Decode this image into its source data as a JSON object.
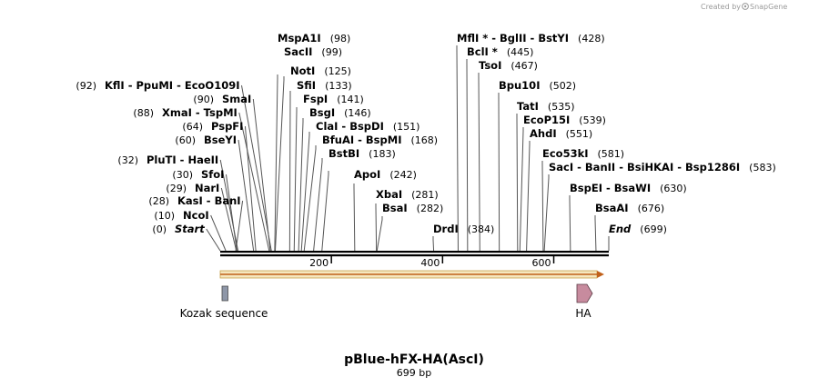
{
  "credit": {
    "created_by": "Created by",
    "brand": "SnapGene"
  },
  "map": {
    "title": "pBlue-hFX-HA(AscI)",
    "length_label": "699 bp",
    "length": 699
  },
  "ticks": [
    {
      "value": 200,
      "label": "200"
    },
    {
      "value": 400,
      "label": "400"
    },
    {
      "value": 600,
      "label": "600"
    }
  ],
  "features": [
    {
      "name": "Kozak sequence",
      "shape": "box",
      "color": "#8e97a8"
    },
    {
      "name": "HA",
      "shape": "arrow",
      "color": "#c78b9e"
    }
  ],
  "sites": [
    {
      "text": "MspA1I",
      "pos": "(98)",
      "site": 98,
      "side": "right"
    },
    {
      "text": "SacII",
      "pos": "(99)",
      "site": 99,
      "side": "right"
    },
    {
      "text": "KflI - PpuMI - EcoO109I",
      "pos": "(92)",
      "site": 92,
      "side": "left"
    },
    {
      "text": "NotI",
      "pos": "(125)",
      "site": 125,
      "side": "right"
    },
    {
      "text": "SmaI",
      "pos": "(90)",
      "site": 90,
      "side": "left"
    },
    {
      "text": "SfiI",
      "pos": "(133)",
      "site": 133,
      "side": "right"
    },
    {
      "text": "XmaI - TspMI",
      "pos": "(88)",
      "site": 88,
      "side": "left"
    },
    {
      "text": "FspI",
      "pos": "(141)",
      "site": 141,
      "side": "right"
    },
    {
      "text": "PspFI",
      "pos": "(64)",
      "site": 64,
      "side": "left"
    },
    {
      "text": "BsgI",
      "pos": "(146)",
      "site": 146,
      "side": "right"
    },
    {
      "text": "BseYI",
      "pos": "(60)",
      "site": 60,
      "side": "left"
    },
    {
      "text": "ClaI - BspDI",
      "pos": "(151)",
      "site": 151,
      "side": "right"
    },
    {
      "text": "BfuAI - BspMI",
      "pos": "(168)",
      "site": 168,
      "side": "right"
    },
    {
      "text": "BstBI",
      "pos": "(183)",
      "site": 183,
      "side": "right"
    },
    {
      "text": "PluTI - HaeII",
      "pos": "(32)",
      "site": 32,
      "side": "left"
    },
    {
      "text": "SfoI",
      "pos": "(30)",
      "site": 30,
      "side": "left"
    },
    {
      "text": "NarI",
      "pos": "(29)",
      "site": 29,
      "side": "left"
    },
    {
      "text": "KasI - BanI",
      "pos": "(28)",
      "site": 28,
      "side": "left"
    },
    {
      "text": "NcoI",
      "pos": "(10)",
      "site": 10,
      "side": "left"
    },
    {
      "text": "Start",
      "pos": "(0)",
      "site": 0,
      "side": "left",
      "italic": true
    },
    {
      "text": "ApoI",
      "pos": "(242)",
      "site": 242,
      "side": "right"
    },
    {
      "text": "XbaI",
      "pos": "(281)",
      "site": 281,
      "side": "right"
    },
    {
      "text": "BsaI",
      "pos": "(282)",
      "site": 282,
      "side": "right"
    },
    {
      "text": "DrdI",
      "pos": "(384)",
      "site": 384,
      "side": "right"
    },
    {
      "text": "MflI * - BglII - BstYI",
      "pos": "(428)",
      "site": 428,
      "side": "right"
    },
    {
      "text": "BclI *",
      "pos": "(445)",
      "site": 445,
      "side": "right"
    },
    {
      "text": "TsoI",
      "pos": "(467)",
      "site": 467,
      "side": "right"
    },
    {
      "text": "Bpu10I",
      "pos": "(502)",
      "site": 502,
      "side": "right"
    },
    {
      "text": "TatI",
      "pos": "(535)",
      "site": 535,
      "side": "right"
    },
    {
      "text": "EcoP15I",
      "pos": "(539)",
      "site": 539,
      "side": "right"
    },
    {
      "text": "AhdI",
      "pos": "(551)",
      "site": 551,
      "side": "right"
    },
    {
      "text": "Eco53kI",
      "pos": "(581)",
      "site": 581,
      "side": "right"
    },
    {
      "text": "SacI - BanII - BsiHKAI - Bsp1286I",
      "pos": "(583)",
      "site": 583,
      "side": "right"
    },
    {
      "text": "BspEI - BsaWI",
      "pos": "(630)",
      "site": 630,
      "side": "right"
    },
    {
      "text": "BsaAI",
      "pos": "(676)",
      "site": 676,
      "side": "right"
    },
    {
      "text": "End",
      "pos": "(699)",
      "site": 699,
      "side": "right",
      "italic": true
    }
  ]
}
